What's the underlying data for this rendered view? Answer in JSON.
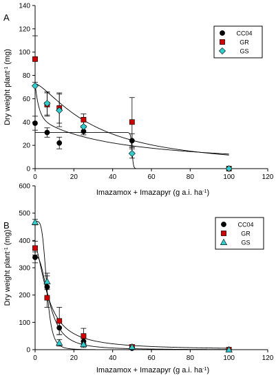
{
  "chart_data": [
    {
      "panel_label": "A",
      "type": "scatter",
      "xlabel": "Imazamox + Imazapyr (g a.i. ha",
      "xlabel_sup": "-1",
      "xlabel_end": ")",
      "ylabel": "Dry weight plant",
      "ylabel_sup": "-1",
      "ylabel_end": " (mg)",
      "xlim": [
        0,
        120
      ],
      "ylim": [
        0,
        140
      ],
      "xticks": [
        0,
        20,
        40,
        60,
        80,
        100,
        120
      ],
      "yticks": [
        0,
        20,
        40,
        60,
        80,
        100,
        120,
        140
      ],
      "legend_position": "top-right",
      "series": [
        {
          "name": "CC04",
          "marker": "circle",
          "color": "#000000",
          "x": [
            0,
            6.2,
            12.5,
            25,
            50
          ],
          "y": [
            39,
            31,
            22,
            32,
            24
          ],
          "err": [
            6,
            4,
            5,
            3,
            6
          ],
          "fit": {
            "model": "threshold",
            "y0": 31,
            "x0": 50,
            "k": 0.35
          }
        },
        {
          "name": "GR",
          "marker": "square",
          "color": "#cc0000",
          "x": [
            0,
            6.2,
            12.5,
            25,
            50,
            100
          ],
          "y": [
            94,
            55,
            52,
            42,
            40,
            0
          ],
          "err": [
            20,
            10,
            13,
            5,
            21,
            0
          ],
          "fit": {
            "model": "hyperbola",
            "a": 45,
            "b": 38.5,
            "c": 73,
            "d": 1.9
          }
        },
        {
          "name": "GS",
          "marker": "diamond",
          "color": "#33cccc",
          "x": [
            0,
            6.2,
            12.5,
            25,
            50,
            100
          ],
          "y": [
            71,
            56,
            50,
            36,
            13,
            0
          ],
          "err": [
            0,
            10,
            14,
            5,
            4,
            0
          ],
          "fit": {
            "model": "loglogistic",
            "top": 73,
            "ed50": 30.5,
            "slope": 1.4
          }
        }
      ]
    },
    {
      "panel_label": "B",
      "type": "scatter",
      "xlabel": "Imazamox + Imazapyr (g a.i. ha",
      "xlabel_sup": "-1",
      "xlabel_end": ")",
      "ylabel": "Dry weight plant",
      "ylabel_sup": "-1",
      "ylabel_end": " (mg)",
      "xlim": [
        0,
        120
      ],
      "ylim": [
        0,
        600
      ],
      "xticks": [
        0,
        20,
        40,
        60,
        80,
        100,
        120
      ],
      "yticks": [
        0,
        100,
        200,
        300,
        400,
        500,
        600
      ],
      "legend_position": "top-right",
      "series": [
        {
          "name": "CC04",
          "marker": "circle",
          "color": "#000000",
          "x": [
            0,
            6.2,
            12.5,
            25,
            50,
            100
          ],
          "y": [
            338,
            230,
            80,
            30,
            5,
            0
          ],
          "err": [
            20,
            40,
            25,
            10,
            3,
            0
          ],
          "fit": {
            "model": "loglogistic",
            "top": 345,
            "ed50": 7.5,
            "slope": 2.4
          }
        },
        {
          "name": "GR",
          "marker": "square",
          "color": "#cc0000",
          "x": [
            0,
            6.2,
            12.5,
            25,
            50,
            100
          ],
          "y": [
            372,
            190,
            105,
            50,
            10,
            0
          ],
          "err": [
            25,
            35,
            50,
            28,
            8,
            0
          ],
          "fit": {
            "model": "loglogistic",
            "top": 380,
            "ed50": 6.9,
            "slope": 1.6
          }
        },
        {
          "name": "GS",
          "marker": "triangle",
          "color": "#33cccc",
          "x": [
            0,
            6.2,
            12.5,
            25,
            50,
            100
          ],
          "y": [
            467,
            250,
            25,
            20,
            10,
            0
          ],
          "err": [
            10,
            30,
            12,
            12,
            5,
            0
          ],
          "fit": {
            "model": "loglogistic",
            "top": 470,
            "ed50": 6.0,
            "slope": 4.5
          }
        }
      ]
    }
  ]
}
